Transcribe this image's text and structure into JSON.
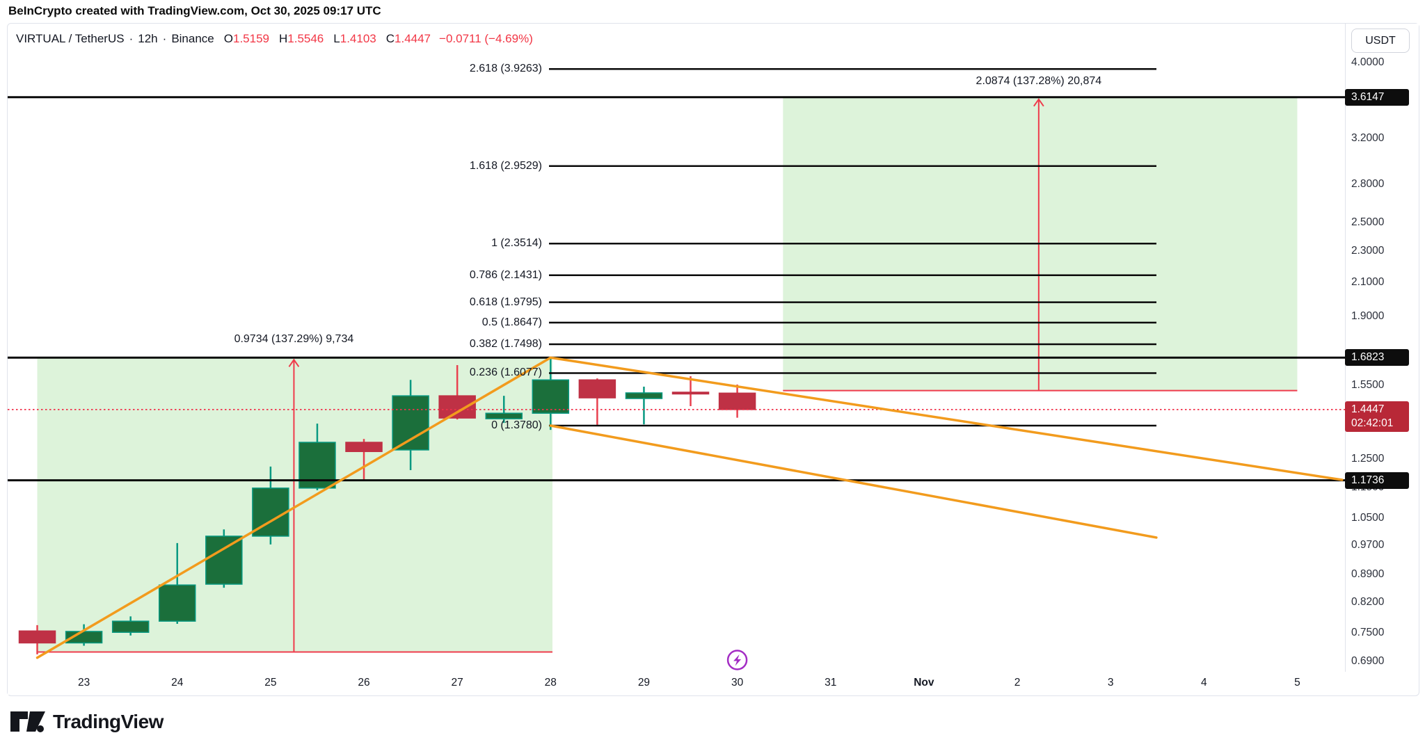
{
  "page": {
    "top_bar": "BeInCrypto created with TradingView.com, Oct 30, 2025 09:17 UTC"
  },
  "header": {
    "symbol": "VIRTUAL / TetherUS",
    "interval": "12h",
    "exchange": "Binance",
    "sep": "·",
    "ohlc": [
      {
        "k": "O",
        "v": "1.5159"
      },
      {
        "k": "H",
        "v": "1.5546"
      },
      {
        "k": "L",
        "v": "1.4103"
      },
      {
        "k": "C",
        "v": "1.4447"
      }
    ],
    "change": "−0.0711 (−4.69%)"
  },
  "axis": {
    "currency": "USDT",
    "price_labels": [
      {
        "text": "4.0000",
        "price": 4.0
      },
      {
        "text": "3.2000",
        "price": 3.2
      },
      {
        "text": "2.8000",
        "price": 2.8
      },
      {
        "text": "2.5000",
        "price": 2.5
      },
      {
        "text": "2.3000",
        "price": 2.3
      },
      {
        "text": "2.1000",
        "price": 2.1
      },
      {
        "text": "1.9000",
        "price": 1.9
      },
      {
        "text": "1.5500",
        "price": 1.55
      },
      {
        "text": "1.2500",
        "price": 1.25
      },
      {
        "text": "1.1500",
        "price": 1.15
      },
      {
        "text": "1.0500",
        "price": 1.05
      },
      {
        "text": "0.9700",
        "price": 0.97
      },
      {
        "text": "0.8900",
        "price": 0.89
      },
      {
        "text": "0.8200",
        "price": 0.82
      },
      {
        "text": "0.7500",
        "price": 0.75
      },
      {
        "text": "0.6900",
        "price": 0.69
      }
    ],
    "time_labels": [
      {
        "text": "23",
        "day": 23,
        "bold": false
      },
      {
        "text": "24",
        "day": 24,
        "bold": false
      },
      {
        "text": "25",
        "day": 25,
        "bold": false
      },
      {
        "text": "26",
        "day": 26,
        "bold": false
      },
      {
        "text": "27",
        "day": 27,
        "bold": false
      },
      {
        "text": "28",
        "day": 28,
        "bold": false
      },
      {
        "text": "29",
        "day": 29,
        "bold": false
      },
      {
        "text": "30",
        "day": 30,
        "bold": false
      },
      {
        "text": "31",
        "day": 31,
        "bold": false
      },
      {
        "text": "Nov",
        "day": 32,
        "bold": true
      },
      {
        "text": "2",
        "day": 33,
        "bold": false
      },
      {
        "text": "3",
        "day": 34,
        "bold": false
      },
      {
        "text": "4",
        "day": 35,
        "bold": false
      },
      {
        "text": "5",
        "day": 36,
        "bold": false
      }
    ]
  },
  "key_levels": [
    {
      "text": "3.6147",
      "price": 3.6147
    },
    {
      "text": "1.6823",
      "price": 1.6823
    },
    {
      "text": "1.1736",
      "price": 1.1736
    }
  ],
  "last_price": {
    "text": "1.4447",
    "price": 1.4447,
    "countdown": "02:42:01"
  },
  "fib": {
    "levels": [
      {
        "label": "2.618 (3.9263)",
        "price": 3.9263
      },
      {
        "label": "1.618 (2.9529)",
        "price": 2.9529
      },
      {
        "label": "1 (2.3514)",
        "price": 2.3514
      },
      {
        "label": "0.786 (2.1431)",
        "price": 2.1431
      },
      {
        "label": "0.618 (1.9795)",
        "price": 1.9795
      },
      {
        "label": "0.5 (1.8647)",
        "price": 1.8647
      },
      {
        "label": "0.382 (1.7498)",
        "price": 1.7498
      },
      {
        "label": "0.236 (1.6077)",
        "price": 1.6077
      },
      {
        "label": "0 (1.3780)",
        "price": 1.378
      }
    ]
  },
  "projections": [
    {
      "label": "0.9734 (137.29%) 9,734",
      "day1": 22.5,
      "day2": 28.02,
      "price_top": 1.6823,
      "price_bottom": 0.7089,
      "arrow_day": 25.25
    },
    {
      "label": "2.0874 (137.28%) 20,874",
      "day1": 30.49,
      "day2": 36.0,
      "price_top": 3.6147,
      "price_bottom": 1.5273,
      "arrow_day": 33.23
    }
  ],
  "trendlines": [
    {
      "day1": 22.5,
      "price1": 0.697,
      "day2": 28.0,
      "price2": 1.6823
    },
    {
      "day1": 28.0,
      "price1": 1.6823,
      "day2": 36.48,
      "price2": 1.175
    },
    {
      "day1": 28.0,
      "price1": 1.378,
      "day2": 34.49,
      "price2": 0.992
    }
  ],
  "chart_data": {
    "type": "candlestick",
    "title": "VIRTUAL / TetherUS 12h Binance",
    "interval": "12h",
    "x_axis_labels": [
      "23",
      "24",
      "25",
      "26",
      "27",
      "28",
      "29",
      "30",
      "31",
      "Nov",
      "2",
      "3",
      "4",
      "5"
    ],
    "y_axis_range": [
      0.69,
      4.0
    ],
    "y_scale": "log",
    "start_day": 22.5,
    "candle_step_days": 0.5,
    "candles_ohlc": [
      [
        0.754,
        0.767,
        0.704,
        0.728
      ],
      [
        0.728,
        0.769,
        0.722,
        0.753
      ],
      [
        0.751,
        0.787,
        0.744,
        0.776
      ],
      [
        0.776,
        0.976,
        0.77,
        0.863
      ],
      [
        0.865,
        1.016,
        0.856,
        0.996
      ],
      [
        0.996,
        1.222,
        0.972,
        1.147
      ],
      [
        1.147,
        1.386,
        1.14,
        1.312
      ],
      [
        1.312,
        1.325,
        1.177,
        1.277
      ],
      [
        1.283,
        1.576,
        1.209,
        1.504
      ],
      [
        1.504,
        1.646,
        1.403,
        1.409
      ],
      [
        1.406,
        1.504,
        1.389,
        1.429
      ],
      [
        1.429,
        1.683,
        1.361,
        1.576
      ],
      [
        1.576,
        1.583,
        1.381,
        1.495
      ],
      [
        1.492,
        1.545,
        1.383,
        1.517
      ],
      [
        1.52,
        1.593,
        1.459,
        1.519
      ],
      [
        1.5159,
        1.5546,
        1.4103,
        1.4447
      ]
    ]
  },
  "branding": {
    "logo_text": "TradingView"
  },
  "icons": {
    "bolt": "lightning-bolt"
  },
  "colors": {
    "up_body": "#1b6f3b",
    "up_border": "#089981",
    "down_body": "#bf3145",
    "down_wick": "#e8414f",
    "level_line": "#0a0a0a",
    "orange": "#f29b1d",
    "region_fill": "#ddf3da",
    "projection_red": "#ef3b4c",
    "dotted_red": "#f0314b",
    "value_red": "#f23645",
    "badge_black": "#0d0d0d",
    "badge_red": "#b82837",
    "purple": "#a32cc4"
  }
}
